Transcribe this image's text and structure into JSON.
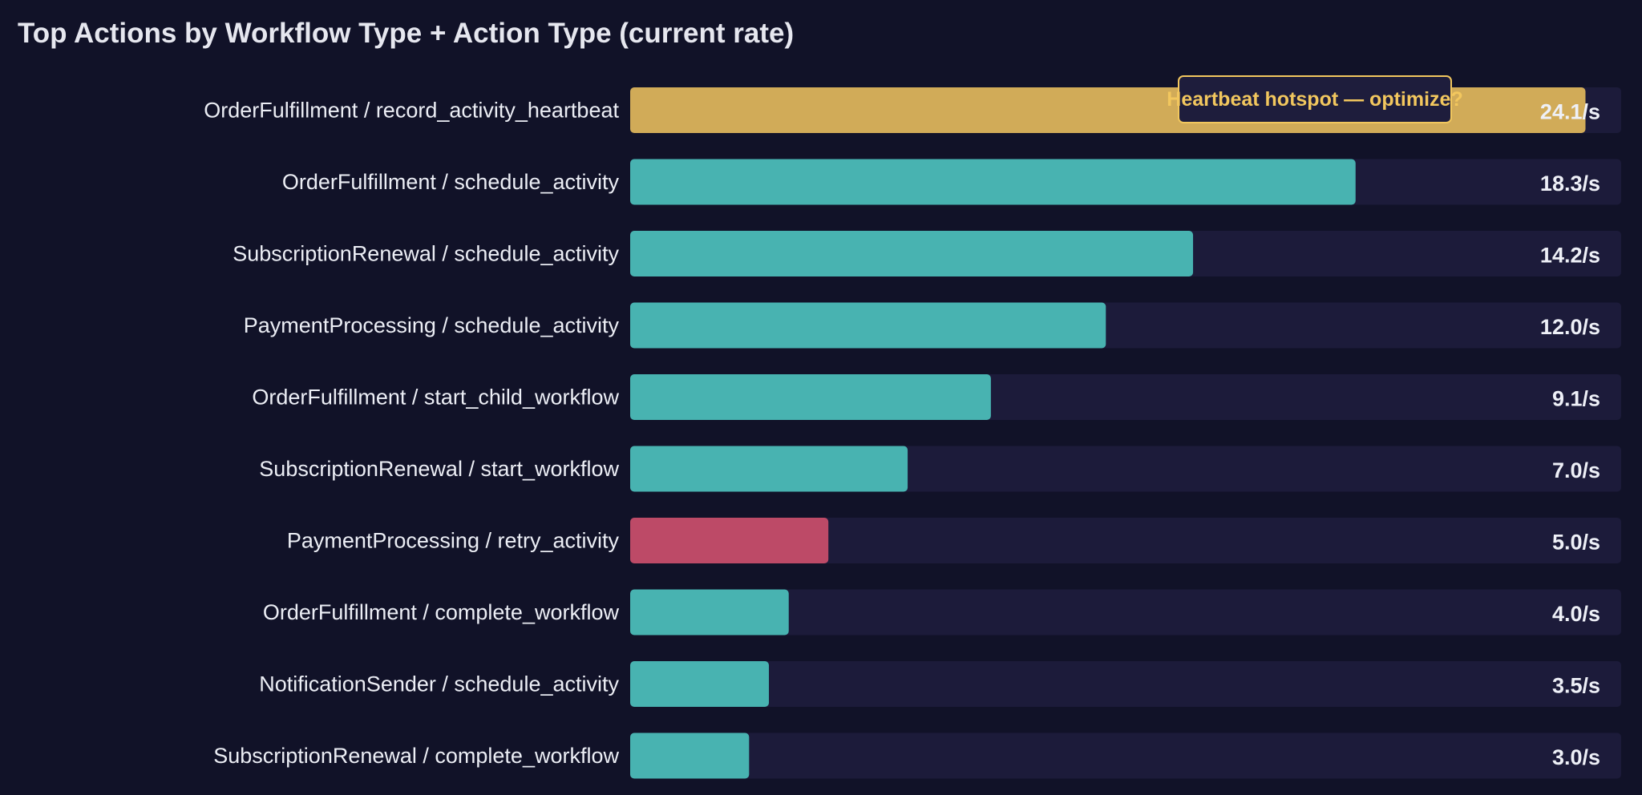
{
  "chart_data": {
    "type": "bar",
    "orientation": "horizontal",
    "title": "Top Actions by Workflow Type + Action Type (current rate)",
    "xlabel": "",
    "ylabel": "",
    "xlim": [
      0,
      25
    ],
    "grid": false,
    "categories": [
      "OrderFulfillment / record_activity_heartbeat",
      "OrderFulfillment / schedule_activity",
      "SubscriptionRenewal / schedule_activity",
      "PaymentProcessing / schedule_activity",
      "OrderFulfillment / start_child_workflow",
      "SubscriptionRenewal / start_workflow",
      "PaymentProcessing / retry_activity",
      "OrderFulfillment / complete_workflow",
      "NotificationSender / schedule_activity",
      "SubscriptionRenewal / complete_workflow"
    ],
    "values": [
      24.1,
      18.3,
      14.2,
      12.0,
      9.1,
      7.0,
      5.0,
      4.0,
      3.5,
      3.0
    ],
    "value_labels": [
      "24.1/s",
      "18.3/s",
      "14.2/s",
      "12.0/s",
      "9.1/s",
      "7.0/s",
      "5.0/s",
      "4.0/s",
      "3.5/s",
      "3.0/s"
    ],
    "bar_colors": [
      "#d1ab58",
      "#48b3b1",
      "#48b3b1",
      "#48b3b1",
      "#48b3b1",
      "#48b3b1",
      "#bd4a67",
      "#48b3b1",
      "#48b3b1",
      "#48b3b1"
    ],
    "track_color": "#1c1b3a",
    "annotation": {
      "text": "Heartbeat hotspot — optimize?",
      "category": "OrderFulfillment / record_activity_heartbeat",
      "text_color": "#f2c75e",
      "border_color": "#f2c75e",
      "background": "#1e1d3c"
    }
  },
  "colors": {
    "background": "#111228",
    "text": "#eceef5",
    "accent_teal": "#48b3b1",
    "accent_gold": "#d1ab58",
    "accent_red": "#bd4a67"
  }
}
